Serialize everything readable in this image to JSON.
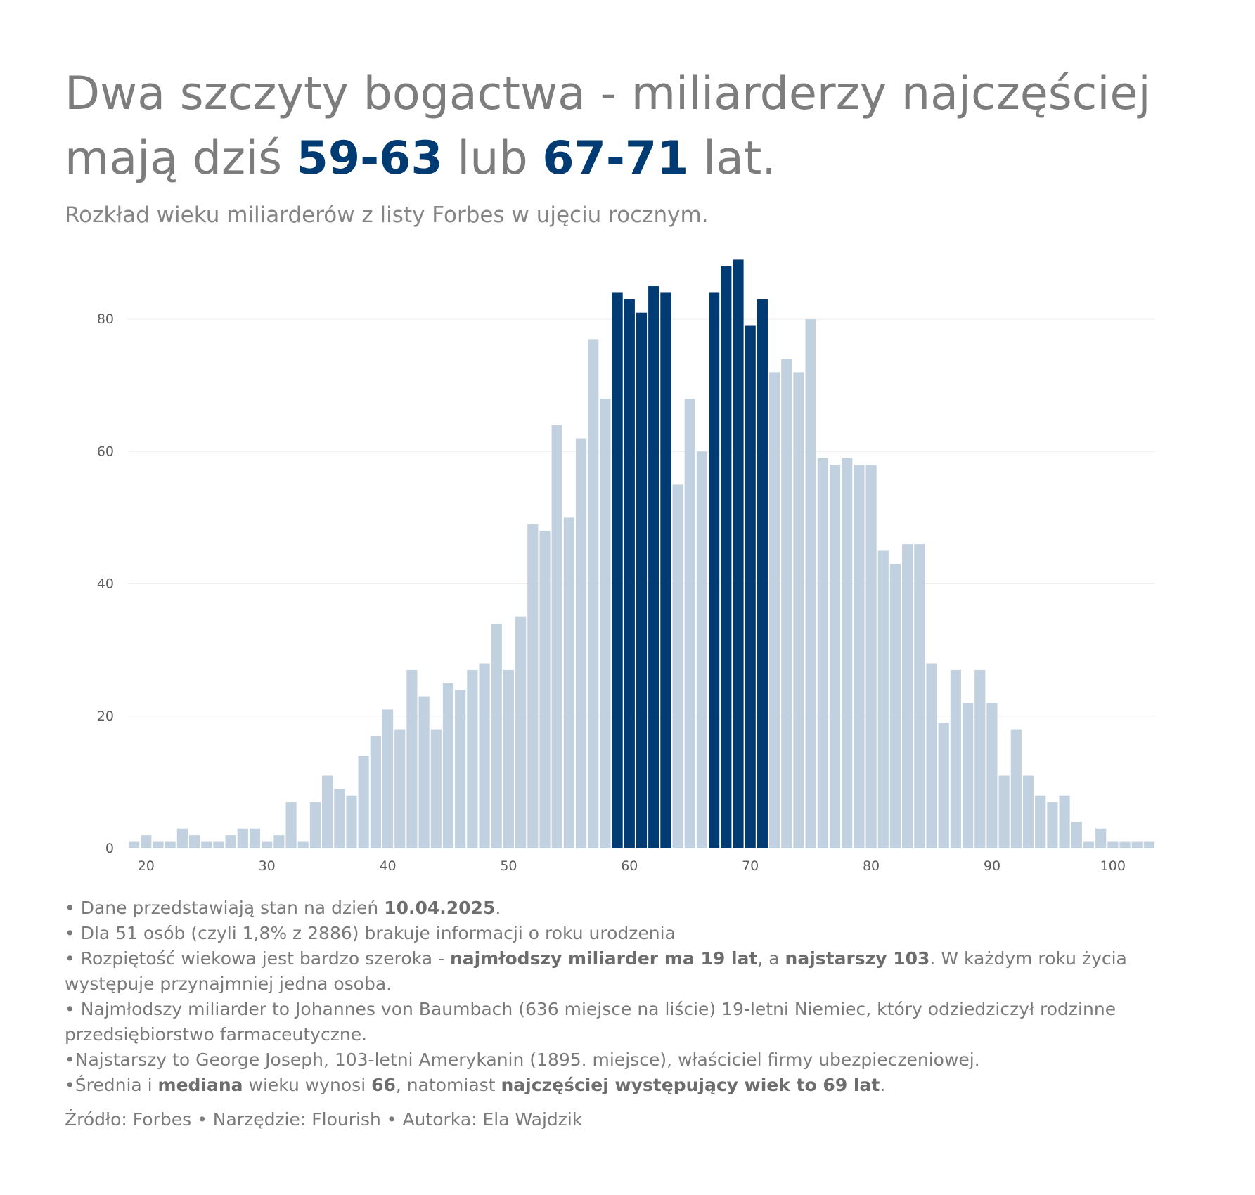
{
  "title": {
    "part1": "Dwa szczyty bogactwa - miliarderzy najczęściej mają dziś ",
    "hl1": "59-63",
    "part2": " lub ",
    "hl2": "67-71",
    "part3": " lat."
  },
  "subtitle": "Rozkład wieku miliarderów z listy Forbes w ujęciu rocznym.",
  "colors": {
    "base": "#c2d1df",
    "highlight": "#003b73",
    "grid": "#eeeeee"
  },
  "chart_data": {
    "type": "bar",
    "title": "",
    "xlabel": "",
    "ylabel": "",
    "x_ticks": [
      20,
      30,
      40,
      50,
      60,
      70,
      80,
      90,
      100
    ],
    "y_ticks": [
      0,
      20,
      40,
      60,
      80
    ],
    "xlim": [
      18.5,
      103.5
    ],
    "ylim": [
      0,
      90
    ],
    "grid": true,
    "highlight_ranges": [
      [
        59,
        63
      ],
      [
        67,
        71
      ]
    ],
    "ages": [
      19,
      20,
      21,
      22,
      23,
      24,
      25,
      26,
      27,
      28,
      29,
      30,
      31,
      32,
      33,
      34,
      35,
      36,
      37,
      38,
      39,
      40,
      41,
      42,
      43,
      44,
      45,
      46,
      47,
      48,
      49,
      50,
      51,
      52,
      53,
      54,
      55,
      56,
      57,
      58,
      59,
      60,
      61,
      62,
      63,
      64,
      65,
      66,
      67,
      68,
      69,
      70,
      71,
      72,
      73,
      74,
      75,
      76,
      77,
      78,
      79,
      80,
      81,
      82,
      83,
      84,
      85,
      86,
      87,
      88,
      89,
      90,
      91,
      92,
      93,
      94,
      95,
      96,
      97,
      98,
      99,
      100,
      101,
      102,
      103
    ],
    "values": [
      1,
      2,
      1,
      1,
      3,
      2,
      1,
      1,
      2,
      3,
      3,
      1,
      2,
      7,
      1,
      7,
      11,
      9,
      8,
      14,
      17,
      21,
      18,
      27,
      23,
      18,
      25,
      24,
      27,
      28,
      34,
      27,
      35,
      49,
      48,
      64,
      50,
      62,
      77,
      68,
      84,
      83,
      81,
      85,
      84,
      55,
      68,
      60,
      84,
      88,
      89,
      79,
      83,
      72,
      74,
      72,
      80,
      59,
      58,
      59,
      58,
      58,
      45,
      43,
      46,
      46,
      28,
      19,
      27,
      22,
      27,
      22,
      11,
      18,
      11,
      8,
      7,
      8,
      4,
      1,
      3,
      1,
      1,
      1,
      1
    ]
  },
  "notes": [
    [
      {
        "t": "• Dane przedstawiają stan na dzień "
      },
      {
        "t": "10.04.2025",
        "b": true
      },
      {
        "t": "."
      }
    ],
    [
      {
        "t": "• Dla 51 osób (czyli 1,8% z 2886) brakuje informacji o roku urodzenia"
      }
    ],
    [
      {
        "t": "• Rozpiętość wiekowa jest bardzo szeroka - "
      },
      {
        "t": "najmłodszy miliarder ma 19 lat",
        "b": true
      },
      {
        "t": ", a "
      },
      {
        "t": "najstarszy 103",
        "b": true
      },
      {
        "t": ". W każdym roku życia występuje przynajmniej jedna osoba."
      }
    ],
    [
      {
        "t": "• Najmłodszy miliarder to Johannes von Baumbach (636 miejsce na liście) 19-letni Niemiec, który odziedziczył rodzinne przedsiębiorstwo farmaceutyczne."
      }
    ],
    [
      {
        "t": "•Najstarszy to George Joseph, 103-letni Amerykanin (1895. miejsce), właściciel firmy ubezpieczeniowej."
      }
    ],
    [
      {
        "t": "•Średnia i "
      },
      {
        "t": "mediana",
        "b": true
      },
      {
        "t": " wieku wynosi "
      },
      {
        "t": "66",
        "b": true
      },
      {
        "t": ", natomiast "
      },
      {
        "t": "najczęściej występujący wiek to 69 lat",
        "b": true
      },
      {
        "t": "."
      }
    ]
  ],
  "source": "Źródło: Forbes • Narzędzie: Flourish • Autorka: Ela Wajdzik"
}
